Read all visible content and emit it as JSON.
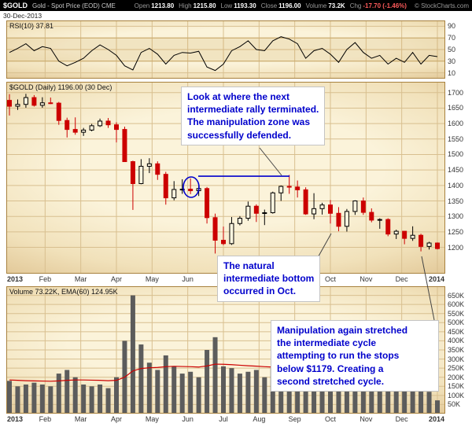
{
  "colors": {
    "header_bg": "#000000",
    "annotation_blue": "#0000cc",
    "candle_up": "#000000",
    "candle_down": "#cc0000",
    "volume_bar": "#5c5c5c",
    "ema_line": "#cc0000",
    "rsi_line": "#000000",
    "grid": "#d8bf8f",
    "band_fill": "rgba(200,160,85,0.18)",
    "band_edge": "#c9a96b",
    "pointer": "#444444",
    "panel_border": "#a8823f",
    "chg_negative": "#ff5b5b",
    "axis_text": "#333333"
  },
  "header": {
    "symbol": "$GOLD",
    "description": "Gold - Spot Price (EOD) CME",
    "date": "30-Dec-2013",
    "credit": "© StockCharts.com",
    "fields": [
      {
        "label": "Open",
        "value": "1213.80"
      },
      {
        "label": "High",
        "value": "1215.80"
      },
      {
        "label": "Low",
        "value": "1193.30"
      },
      {
        "label": "Close",
        "value": "1196.00"
      },
      {
        "label": "Volume",
        "value": "73.2K"
      },
      {
        "label": "Chg",
        "value": "-17.70 (-1.46%)"
      }
    ]
  },
  "x_axis": {
    "labels": [
      "2013",
      "Feb",
      "Mar",
      "Apr",
      "May",
      "Jun",
      "Jul",
      "Aug",
      "Sep",
      "Oct",
      "Nov",
      "Dec",
      "2014"
    ]
  },
  "annotations": {
    "boxes": [
      {
        "id": "ann1",
        "lines": [
          "Look at where the next",
          "intermediate rally terminated.",
          "The manipulation zone was",
          "successfully defended."
        ]
      },
      {
        "id": "ann2",
        "lines": [
          "The natural",
          "intermediate bottom",
          "occurred in Oct."
        ]
      },
      {
        "id": "ann3",
        "lines": [
          "Manipulation again stretched",
          "the intermediate cycle",
          "attempting to run the stops",
          "below $1179. Creating a",
          "second stretched cycle."
        ]
      }
    ],
    "circled_area": "early June candles near 1400",
    "resistance_zone_level": 1430
  },
  "chart_data": [
    {
      "type": "line",
      "name": "RSI(10)",
      "title": "RSI(10) 37.81",
      "current": 37.81,
      "ylim": [
        0,
        100
      ],
      "yticks": [
        90,
        70,
        50,
        30,
        10
      ],
      "band": [
        30,
        70
      ],
      "values": [
        45,
        52,
        60,
        48,
        55,
        52,
        30,
        22,
        28,
        35,
        48,
        58,
        50,
        40,
        22,
        15,
        45,
        52,
        42,
        25,
        40,
        45,
        44,
        47,
        20,
        14,
        25,
        48,
        55,
        65,
        50,
        48,
        65,
        72,
        68,
        60,
        35,
        48,
        52,
        42,
        28,
        50,
        62,
        45,
        35,
        40,
        25,
        35,
        28,
        45,
        25,
        40,
        37.81
      ]
    },
    {
      "type": "candlestick",
      "name": "$GOLD Daily (weekly approximation)",
      "title": "$GOLD (Daily) 1196.00 (30 Dec)",
      "last_close": 1196.0,
      "resistance_level": 1430,
      "ylim": [
        1115,
        1735
      ],
      "yticks": [
        1700,
        1650,
        1600,
        1550,
        1500,
        1450,
        1400,
        1350,
        1300,
        1250,
        1200
      ],
      "dates": [
        "2013-01-04",
        "2013-01-11",
        "2013-01-18",
        "2013-01-25",
        "2013-02-01",
        "2013-02-08",
        "2013-02-15",
        "2013-02-22",
        "2013-03-01",
        "2013-03-08",
        "2013-03-15",
        "2013-03-22",
        "2013-03-28",
        "2013-04-05",
        "2013-04-12",
        "2013-04-19",
        "2013-04-26",
        "2013-05-03",
        "2013-05-10",
        "2013-05-17",
        "2013-05-24",
        "2013-05-31",
        "2013-06-07",
        "2013-06-14",
        "2013-06-21",
        "2013-06-28",
        "2013-07-05",
        "2013-07-12",
        "2013-07-19",
        "2013-07-26",
        "2013-08-02",
        "2013-08-09",
        "2013-08-16",
        "2013-08-23",
        "2013-08-30",
        "2013-09-06",
        "2013-09-13",
        "2013-09-20",
        "2013-09-27",
        "2013-10-04",
        "2013-10-11",
        "2013-10-18",
        "2013-10-25",
        "2013-11-01",
        "2013-11-08",
        "2013-11-15",
        "2013-11-22",
        "2013-11-29",
        "2013-12-06",
        "2013-12-13",
        "2013-12-20",
        "2013-12-27",
        "2013-12-31"
      ],
      "ohlc": [
        [
          1675,
          1695,
          1626,
          1656
        ],
        [
          1656,
          1678,
          1644,
          1662
        ],
        [
          1662,
          1696,
          1651,
          1684
        ],
        [
          1684,
          1692,
          1655,
          1659
        ],
        [
          1659,
          1685,
          1651,
          1667
        ],
        [
          1667,
          1684,
          1663,
          1666
        ],
        [
          1666,
          1670,
          1596,
          1610
        ],
        [
          1610,
          1619,
          1555,
          1581
        ],
        [
          1581,
          1620,
          1564,
          1572
        ],
        [
          1572,
          1586,
          1560,
          1579
        ],
        [
          1579,
          1599,
          1575,
          1593
        ],
        [
          1593,
          1616,
          1589,
          1608
        ],
        [
          1608,
          1618,
          1586,
          1596
        ],
        [
          1596,
          1604,
          1539,
          1581
        ],
        [
          1581,
          1590,
          1476,
          1477
        ],
        [
          1477,
          1480,
          1321,
          1406
        ],
        [
          1406,
          1485,
          1404,
          1462
        ],
        [
          1462,
          1488,
          1440,
          1470
        ],
        [
          1470,
          1478,
          1418,
          1436
        ],
        [
          1436,
          1444,
          1338,
          1360
        ],
        [
          1360,
          1414,
          1352,
          1387
        ],
        [
          1387,
          1420,
          1373,
          1388
        ],
        [
          1388,
          1423,
          1372,
          1383
        ],
        [
          1383,
          1399,
          1366,
          1390
        ],
        [
          1390,
          1395,
          1277,
          1296
        ],
        [
          1296,
          1309,
          1180,
          1223
        ],
        [
          1223,
          1267,
          1207,
          1212
        ],
        [
          1212,
          1298,
          1208,
          1277
        ],
        [
          1277,
          1301,
          1271,
          1294
        ],
        [
          1294,
          1348,
          1286,
          1333
        ],
        [
          1333,
          1339,
          1282,
          1310
        ],
        [
          1310,
          1322,
          1272,
          1312
        ],
        [
          1312,
          1380,
          1309,
          1376
        ],
        [
          1376,
          1400,
          1350,
          1397
        ],
        [
          1397,
          1434,
          1373,
          1395
        ],
        [
          1395,
          1416,
          1361,
          1386
        ],
        [
          1386,
          1394,
          1305,
          1308
        ],
        [
          1308,
          1375,
          1291,
          1325
        ],
        [
          1325,
          1344,
          1306,
          1337
        ],
        [
          1337,
          1353,
          1277,
          1310
        ],
        [
          1310,
          1330,
          1252,
          1268
        ],
        [
          1268,
          1324,
          1251,
          1316
        ],
        [
          1316,
          1352,
          1305,
          1350
        ],
        [
          1350,
          1361,
          1305,
          1313
        ],
        [
          1313,
          1326,
          1281,
          1288
        ],
        [
          1288,
          1294,
          1260,
          1290
        ],
        [
          1290,
          1294,
          1236,
          1243
        ],
        [
          1243,
          1257,
          1227,
          1252
        ],
        [
          1252,
          1252,
          1210,
          1229
        ],
        [
          1229,
          1268,
          1221,
          1239
        ],
        [
          1239,
          1244,
          1187,
          1203
        ],
        [
          1203,
          1218,
          1193,
          1214
        ],
        [
          1214,
          1216,
          1193,
          1196
        ]
      ]
    },
    {
      "type": "bar",
      "name": "Volume",
      "title": "Volume 73.22K, EMA(60) 124.95K",
      "unit": "K",
      "current": 73.22,
      "ema60_current": 124.95,
      "ylim": [
        0,
        700
      ],
      "yticks": [
        650,
        600,
        550,
        500,
        450,
        400,
        350,
        300,
        250,
        200,
        150,
        100,
        50
      ],
      "values": [
        180,
        150,
        160,
        170,
        160,
        150,
        220,
        240,
        200,
        160,
        150,
        160,
        140,
        200,
        400,
        650,
        380,
        280,
        240,
        320,
        260,
        220,
        230,
        200,
        350,
        420,
        260,
        250,
        220,
        230,
        240,
        200,
        250,
        230,
        240,
        220,
        260,
        300,
        200,
        210,
        250,
        230,
        200,
        210,
        220,
        190,
        230,
        170,
        200,
        220,
        260,
        120,
        73
      ],
      "ema60": [
        185,
        183,
        181,
        180,
        179,
        178,
        180,
        183,
        185,
        185,
        184,
        183,
        181,
        183,
        200,
        235,
        248,
        252,
        254,
        258,
        260,
        259,
        258,
        256,
        262,
        272,
        271,
        269,
        266,
        263,
        261,
        258,
        256,
        253,
        251,
        248,
        246,
        245,
        242,
        239,
        236,
        232,
        228,
        223,
        218,
        212,
        206,
        199,
        192,
        184,
        176,
        150,
        125
      ]
    }
  ]
}
